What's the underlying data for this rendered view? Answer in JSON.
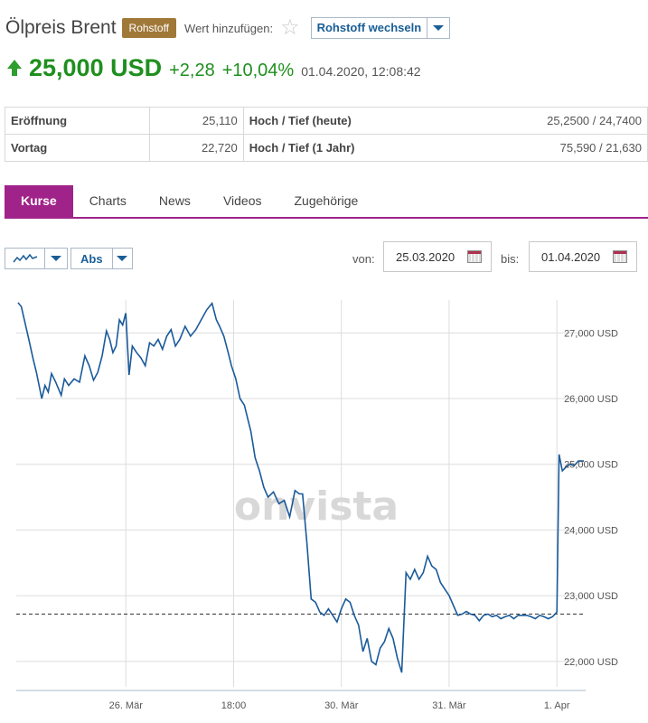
{
  "header": {
    "title": "Ölpreis Brent",
    "badge": "Rohstoff",
    "watch_label": "Wert hinzufügen:",
    "switch_label": "Rohstoff wechseln"
  },
  "quote": {
    "price": "25,000 USD",
    "change_abs": "+2,28",
    "change_pct": "+10,04%",
    "datetime": "01.04.2020, 12:08:42"
  },
  "stats": {
    "open_label": "Eröffnung",
    "open_value": "25,110",
    "prev_label": "Vortag",
    "prev_value": "22,720",
    "hl_today_label": "Hoch / Tief (heute)",
    "hl_today_value": "25,2500 / 24,7400",
    "hl_year_label": "Hoch / Tief (1 Jahr)",
    "hl_year_value": "75,590 / 21,630"
  },
  "tabs": [
    "Kurse",
    "Charts",
    "News",
    "Videos",
    "Zugehörige"
  ],
  "toolbar": {
    "chart_type_icon": "line-chart-icon",
    "mode_label": "Abs",
    "from_label": "von:",
    "from_value": "25.03.2020",
    "to_label": "bis:",
    "to_value": "01.04.2020"
  },
  "watermark": "onvista",
  "colors": {
    "line": "#1a5a9a",
    "accent": "#a0238a",
    "up": "#1f8f1f",
    "badge": "#a07838"
  },
  "chart_data": {
    "type": "line",
    "title": "",
    "xlabel": "",
    "ylabel": "",
    "ylim": [
      21750,
      27500
    ],
    "y_ticks": [
      22000,
      23000,
      24000,
      25000,
      26000,
      27000
    ],
    "y_tick_labels": [
      "22,000 USD",
      "23,000 USD",
      "24,000 USD",
      "25,000 USD",
      "26,000 USD",
      "27,000 USD"
    ],
    "x_tick_labels": [
      "26. Mär",
      "18:00",
      "30. Mär",
      "31. Mär",
      "1. Apr"
    ],
    "x_tick_positions": [
      1,
      2,
      3,
      4,
      5
    ],
    "xlim": [
      0.0,
      5.25
    ],
    "reference_value": 22720,
    "reference_style": "dashed",
    "grid": true,
    "series": [
      {
        "values": [
          [
            0.0,
            27460
          ],
          [
            0.03,
            27400
          ],
          [
            0.1,
            26900
          ],
          [
            0.14,
            26600
          ],
          [
            0.17,
            26400
          ],
          [
            0.22,
            26000
          ],
          [
            0.25,
            26200
          ],
          [
            0.28,
            26100
          ],
          [
            0.31,
            26380
          ],
          [
            0.35,
            26250
          ],
          [
            0.4,
            26050
          ],
          [
            0.43,
            26300
          ],
          [
            0.47,
            26200
          ],
          [
            0.52,
            26300
          ],
          [
            0.57,
            26250
          ],
          [
            0.62,
            26650
          ],
          [
            0.66,
            26500
          ],
          [
            0.7,
            26280
          ],
          [
            0.74,
            26400
          ],
          [
            0.78,
            26650
          ],
          [
            0.82,
            27030
          ],
          [
            0.85,
            26900
          ],
          [
            0.88,
            26700
          ],
          [
            0.91,
            26800
          ],
          [
            0.94,
            27200
          ],
          [
            0.97,
            27120
          ],
          [
            1.0,
            27300
          ],
          [
            1.03,
            26360
          ],
          [
            1.06,
            26800
          ],
          [
            1.1,
            26700
          ],
          [
            1.14,
            26620
          ],
          [
            1.18,
            26500
          ],
          [
            1.22,
            26850
          ],
          [
            1.26,
            26800
          ],
          [
            1.3,
            26900
          ],
          [
            1.34,
            26750
          ],
          [
            1.38,
            26950
          ],
          [
            1.42,
            27050
          ],
          [
            1.46,
            26800
          ],
          [
            1.5,
            26900
          ],
          [
            1.55,
            27100
          ],
          [
            1.6,
            26950
          ],
          [
            1.65,
            27050
          ],
          [
            1.7,
            27200
          ],
          [
            1.75,
            27350
          ],
          [
            1.8,
            27450
          ],
          [
            1.84,
            27200
          ],
          [
            1.87,
            27100
          ],
          [
            1.91,
            26950
          ],
          [
            1.95,
            26700
          ],
          [
            1.98,
            26500
          ],
          [
            2.02,
            26300
          ],
          [
            2.06,
            26000
          ],
          [
            2.1,
            25900
          ],
          [
            2.13,
            25700
          ],
          [
            2.16,
            25500
          ],
          [
            2.2,
            25100
          ],
          [
            2.24,
            24900
          ],
          [
            2.28,
            24650
          ],
          [
            2.32,
            24500
          ],
          [
            2.37,
            24580
          ],
          [
            2.42,
            24400
          ],
          [
            2.47,
            24450
          ],
          [
            2.52,
            24200
          ],
          [
            2.57,
            24600
          ],
          [
            2.61,
            24550
          ],
          [
            2.64,
            24550
          ],
          [
            2.68,
            23800
          ],
          [
            2.72,
            22950
          ],
          [
            2.76,
            22900
          ],
          [
            2.8,
            22750
          ],
          [
            2.84,
            22700
          ],
          [
            2.88,
            22800
          ],
          [
            2.92,
            22700
          ],
          [
            2.96,
            22600
          ],
          [
            3.0,
            22800
          ],
          [
            3.04,
            22950
          ],
          [
            3.08,
            22900
          ],
          [
            3.12,
            22700
          ],
          [
            3.16,
            22550
          ],
          [
            3.2,
            22150
          ],
          [
            3.24,
            22350
          ],
          [
            3.28,
            22000
          ],
          [
            3.32,
            21950
          ],
          [
            3.36,
            22200
          ],
          [
            3.4,
            22300
          ],
          [
            3.44,
            22500
          ],
          [
            3.48,
            22350
          ],
          [
            3.52,
            22050
          ],
          [
            3.56,
            21830
          ],
          [
            3.6,
            23350
          ],
          [
            3.64,
            23250
          ],
          [
            3.68,
            23400
          ],
          [
            3.72,
            23250
          ],
          [
            3.76,
            23350
          ],
          [
            3.8,
            23600
          ],
          [
            3.84,
            23450
          ],
          [
            3.88,
            23400
          ],
          [
            3.92,
            23200
          ],
          [
            3.96,
            23100
          ],
          [
            4.0,
            23000
          ],
          [
            4.04,
            22850
          ],
          [
            4.08,
            22700
          ],
          [
            4.12,
            22720
          ],
          [
            4.16,
            22760
          ],
          [
            4.2,
            22720
          ],
          [
            4.24,
            22700
          ],
          [
            4.28,
            22620
          ],
          [
            4.32,
            22700
          ],
          [
            4.36,
            22720
          ],
          [
            4.4,
            22680
          ],
          [
            4.44,
            22700
          ],
          [
            4.48,
            22650
          ],
          [
            4.52,
            22680
          ],
          [
            4.56,
            22700
          ],
          [
            4.6,
            22650
          ],
          [
            4.64,
            22700
          ],
          [
            4.68,
            22700
          ],
          [
            4.72,
            22700
          ],
          [
            4.76,
            22680
          ],
          [
            4.8,
            22650
          ],
          [
            4.84,
            22700
          ],
          [
            4.88,
            22680
          ],
          [
            4.92,
            22650
          ],
          [
            4.96,
            22680
          ],
          [
            5.0,
            22750
          ],
          [
            5.02,
            25150
          ],
          [
            5.05,
            24900
          ],
          [
            5.08,
            24950
          ],
          [
            5.12,
            25000
          ],
          [
            5.16,
            24980
          ],
          [
            5.2,
            25050
          ],
          [
            5.25,
            25050
          ]
        ]
      }
    ]
  }
}
